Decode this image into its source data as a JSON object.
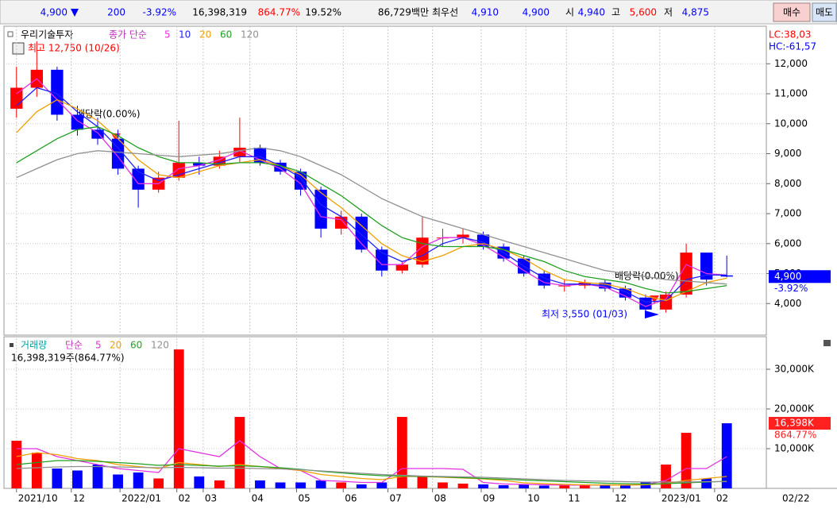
{
  "header": {
    "price": "4,900",
    "change": "200",
    "change_pct": "-3.92%",
    "volume": "16,398,319",
    "volume_ratio": "864.77%",
    "turnover": "19.52%",
    "market_cap": "86,729백만",
    "best_label": "최우선",
    "best_ask": "4,910",
    "best_bid": "4,900",
    "open_label": "시",
    "open": "4,940",
    "high_label": "고",
    "high": "5,600",
    "low_label": "저",
    "low": "4,875",
    "buy": "매수",
    "sell": "매도"
  },
  "chart_data": [
    {
      "type": "candlestick",
      "title": "우리기술투자",
      "ma_label": "종가 단순",
      "up_color": "#ff0000",
      "down_color": "#0000ff",
      "open": [
        10500,
        11200,
        11800,
        10300,
        9800,
        9500,
        8500,
        7800,
        8200,
        8700,
        8600,
        8900,
        9200,
        8700,
        8400,
        7800,
        6500,
        6900,
        5800,
        5100,
        5300,
        6200,
        6200,
        6300,
        5900,
        5500,
        5000,
        4600,
        4600,
        4700,
        4500,
        4200,
        3800,
        4300,
        5700,
        4940
      ],
      "high": [
        11900,
        12750,
        11900,
        10600,
        10200,
        9800,
        8600,
        8400,
        10100,
        8900,
        9100,
        10200,
        9300,
        8800,
        8500,
        7900,
        7100,
        7000,
        5900,
        5400,
        6900,
        6500,
        6500,
        6400,
        6000,
        5600,
        5100,
        4800,
        4800,
        4800,
        4600,
        4300,
        4400,
        6000,
        5700,
        5600
      ],
      "low": [
        10200,
        10900,
        10100,
        9600,
        9300,
        8300,
        7200,
        7700,
        8100,
        8300,
        8500,
        8700,
        8600,
        8300,
        7600,
        6200,
        6300,
        5700,
        4900,
        5000,
        5200,
        5900,
        6000,
        5800,
        5400,
        4900,
        4500,
        4400,
        4500,
        4400,
        4100,
        3550,
        3700,
        4200,
        4600,
        4875
      ],
      "close": [
        11200,
        11800,
        10300,
        9800,
        9500,
        8500,
        7800,
        8200,
        8700,
        8600,
        8900,
        9200,
        8700,
        8400,
        7800,
        6500,
        6900,
        5800,
        5100,
        5300,
        6200,
        6200,
        6300,
        5900,
        5500,
        5000,
        4600,
        4600,
        4700,
        4500,
        4200,
        3800,
        4300,
        5700,
        4800,
        4900
      ],
      "series": [
        {
          "name": "5",
          "color": "#e030e0",
          "values": [
            11000,
            11500,
            10800,
            10100,
            9700,
            8900,
            8000,
            8000,
            8500,
            8600,
            8800,
            9100,
            8800,
            8500,
            8000,
            6900,
            6800,
            6000,
            5300,
            5300,
            5900,
            6200,
            6200,
            5950,
            5550,
            5100,
            4700,
            4600,
            4650,
            4550,
            4250,
            3900,
            4150,
            5300,
            5000,
            4950
          ]
        },
        {
          "name": "10",
          "color": "#2020ff",
          "values": [
            10600,
            11200,
            11000,
            10400,
            9900,
            9200,
            8400,
            8100,
            8300,
            8500,
            8700,
            8900,
            8900,
            8600,
            8200,
            7300,
            6900,
            6300,
            5700,
            5400,
            5600,
            6000,
            6200,
            6050,
            5700,
            5250,
            4850,
            4650,
            4650,
            4600,
            4400,
            4050,
            4100,
            4800,
            4950,
            4950
          ]
        },
        {
          "name": "20",
          "color": "#f0a000",
          "values": [
            9700,
            10400,
            10800,
            10500,
            10100,
            9500,
            8800,
            8300,
            8200,
            8400,
            8600,
            8700,
            8800,
            8600,
            8300,
            7700,
            7200,
            6600,
            6000,
            5600,
            5400,
            5600,
            5900,
            6000,
            5800,
            5500,
            5100,
            4800,
            4700,
            4650,
            4500,
            4250,
            4100,
            4400,
            4700,
            4850
          ]
        },
        {
          "name": "60",
          "color": "#20a020",
          "values": [
            8700,
            9100,
            9500,
            9800,
            9900,
            9600,
            9200,
            8900,
            8700,
            8700,
            8650,
            8700,
            8700,
            8600,
            8400,
            8000,
            7600,
            7100,
            6600,
            6200,
            6000,
            5900,
            5900,
            5900,
            5800,
            5600,
            5400,
            5100,
            4900,
            4800,
            4700,
            4500,
            4350,
            4400,
            4500,
            4600
          ]
        },
        {
          "name": "120",
          "color": "#909090",
          "values": [
            8200,
            8500,
            8800,
            9000,
            9100,
            9050,
            9000,
            8950,
            8900,
            8950,
            9000,
            9100,
            9200,
            9100,
            8900,
            8600,
            8300,
            7900,
            7500,
            7200,
            6900,
            6700,
            6500,
            6300,
            6100,
            5900,
            5700,
            5500,
            5300,
            5100,
            5000,
            4900,
            4800,
            4750,
            4700,
            4650
          ]
        }
      ],
      "ylim": [
        3000,
        13200
      ],
      "yticks": [
        {
          "value": 4000,
          "label": "4,000"
        },
        {
          "value": 5000,
          "label": "5,000"
        },
        {
          "value": 6000,
          "label": "6,000"
        },
        {
          "value": 7000,
          "label": "7,000"
        },
        {
          "value": 8000,
          "label": "8,000"
        },
        {
          "value": 9000,
          "label": "9,000"
        },
        {
          "value": 10000,
          "label": "10,000"
        },
        {
          "value": 11000,
          "label": "11,000"
        },
        {
          "value": 12000,
          "label": "12,000"
        }
      ],
      "grid": true,
      "annotations": [
        "최고 12,750 (10/26)",
        "배당락(0.00%)",
        "배당락(0.00%)",
        "최저 3,550 (01/03)"
      ],
      "lc": "LC:38,03",
      "hc": "HC:-61,57",
      "last_label": "4,900",
      "last_change": "-3.92%"
    },
    {
      "type": "bar",
      "title": "거래량",
      "ma_label": "단순",
      "info": "16,398,319주(864.77%)",
      "values": [
        12000,
        9000,
        5000,
        4500,
        6000,
        3500,
        4000,
        2500,
        35000,
        3000,
        2000,
        18000,
        2000,
        1500,
        1500,
        2000,
        1500,
        1000,
        1500,
        18000,
        3000,
        1500,
        1200,
        1000,
        800,
        900,
        700,
        800,
        1000,
        700,
        900,
        1500,
        6000,
        14000,
        2500,
        16398
      ],
      "series": [
        {
          "name": "5",
          "color": "#e030e0",
          "values": [
            10000,
            10000,
            8000,
            7000,
            6000,
            5000,
            4500,
            4000,
            10000,
            9000,
            8000,
            12000,
            8000,
            5000,
            4500,
            2000,
            1800,
            1500,
            1500,
            5000,
            5000,
            5000,
            4800,
            1500,
            1100,
            1000,
            900,
            850,
            850,
            850,
            850,
            950,
            2000,
            5000,
            5000,
            8000
          ]
        },
        {
          "name": "20",
          "color": "#f0a000",
          "values": [
            8000,
            9000,
            8500,
            7500,
            7000,
            6000,
            5500,
            5000,
            6500,
            6000,
            5500,
            6000,
            5500,
            5000,
            4500,
            3500,
            3000,
            2500,
            2200,
            3000,
            3000,
            2800,
            2600,
            2400,
            2000,
            1400,
            1200,
            1000,
            900,
            850,
            850,
            900,
            1200,
            2000,
            2500,
            3000
          ]
        },
        {
          "name": "60",
          "color": "#20a020",
          "values": [
            6000,
            6500,
            7000,
            7000,
            6800,
            6500,
            6200,
            5800,
            6000,
            5800,
            5600,
            5700,
            5500,
            5200,
            4800,
            4300,
            3900,
            3500,
            3200,
            3100,
            3000,
            2900,
            2700,
            2500,
            2300,
            2100,
            1900,
            1700,
            1500,
            1300,
            1200,
            1100,
            1200,
            1400,
            1600,
            1800
          ]
        },
        {
          "name": "120",
          "color": "#909090",
          "values": [
            5000,
            5200,
            5400,
            5500,
            5500,
            5400,
            5300,
            5200,
            5300,
            5200,
            5100,
            5100,
            5000,
            4900,
            4700,
            4400,
            4100,
            3800,
            3500,
            3300,
            3100,
            3000,
            2900,
            2800,
            2600,
            2400,
            2200,
            2000,
            1900,
            1800,
            1700,
            1600,
            1600,
            1600,
            1700,
            1700
          ]
        }
      ],
      "ylim": [
        0,
        37400
      ],
      "yticks": [
        {
          "value": 10000,
          "label": "10,000K"
        },
        {
          "value": 20000,
          "label": "20,000K"
        },
        {
          "value": 30000,
          "label": "30,000K"
        }
      ],
      "grid": true,
      "xlim": [
        -0.5,
        35.5
      ],
      "xticks": [
        {
          "value": 0,
          "label": "2021/10"
        },
        {
          "value": 2.7,
          "label": "12"
        },
        {
          "value": 5.1,
          "label": "2022/01"
        },
        {
          "value": 7.9,
          "label": "02"
        },
        {
          "value": 9.2,
          "label": "03"
        },
        {
          "value": 11.5,
          "label": "04"
        },
        {
          "value": 13.8,
          "label": "05"
        },
        {
          "value": 16.1,
          "label": "06"
        },
        {
          "value": 18.3,
          "label": "07"
        },
        {
          "value": 20.5,
          "label": "08"
        },
        {
          "value": 22.9,
          "label": "09"
        },
        {
          "value": 25.1,
          "label": "10"
        },
        {
          "value": 27.1,
          "label": "11"
        },
        {
          "value": 29.4,
          "label": "12"
        },
        {
          "value": 31.7,
          "label": "2023/01"
        },
        {
          "value": 34.4,
          "label": "02"
        }
      ],
      "x_end_label": "02/22",
      "last_label": "16,398K",
      "last_change": "864.77%"
    }
  ]
}
